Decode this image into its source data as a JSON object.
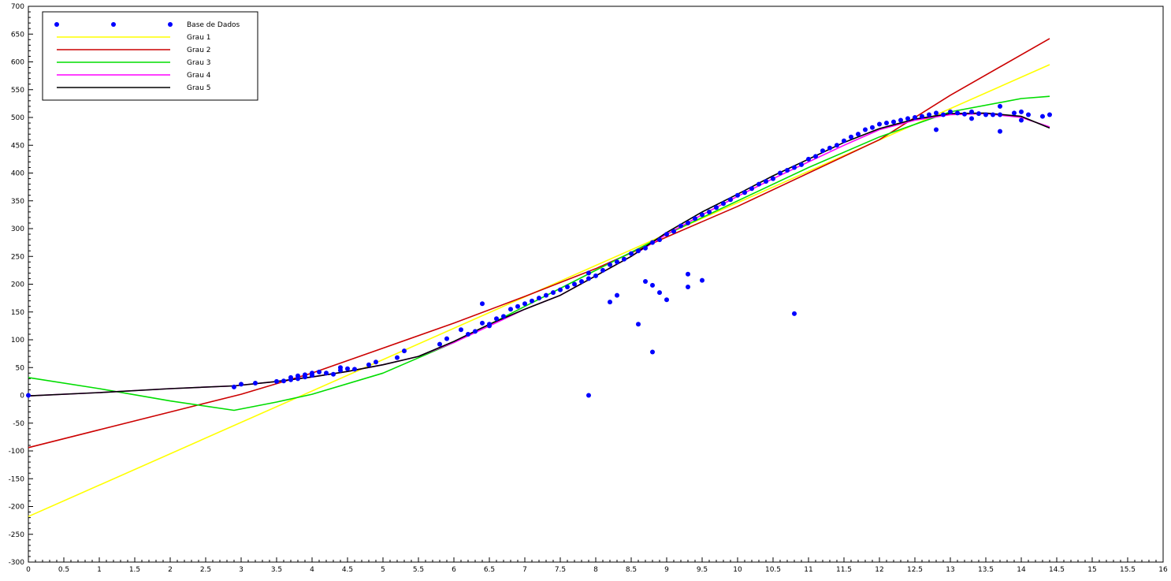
{
  "chart_data": {
    "type": "scatter",
    "xlim": [
      0,
      16
    ],
    "ylim": [
      -300,
      700
    ],
    "x_ticks": [
      0,
      0.5,
      1,
      1.5,
      2,
      2.5,
      3,
      3.5,
      4,
      4.5,
      5,
      5.5,
      6,
      6.5,
      7,
      7.5,
      8,
      8.5,
      9,
      9.5,
      10,
      10.5,
      11,
      11.5,
      12,
      12.5,
      13,
      13.5,
      14,
      14.5,
      15,
      15.5,
      16
    ],
    "x_tick_labels": [
      "0",
      "0.5",
      "1",
      "1.5",
      "2",
      "2.5",
      "3",
      "3.5",
      "4",
      "4.5",
      "5",
      "5.5",
      "6",
      "6.5",
      "7",
      "7.5",
      "8",
      "8.5",
      "9",
      "9.5",
      "10",
      "10.5",
      "11",
      "11.5",
      "12",
      "12.5",
      "13",
      "13.5",
      "14",
      "14.5",
      "15",
      "15.5",
      "16"
    ],
    "y_ticks": [
      -300,
      -250,
      -200,
      -150,
      -100,
      -50,
      0,
      50,
      100,
      150,
      200,
      250,
      300,
      350,
      400,
      450,
      500,
      550,
      600,
      650,
      700
    ],
    "y_tick_labels": [
      "-300",
      "-250",
      "-200",
      "-150",
      "-100",
      "-50",
      "0",
      "50",
      "100",
      "150",
      "200",
      "250",
      "300",
      "350",
      "400",
      "450",
      "500",
      "550",
      "600",
      "650",
      "700"
    ],
    "grid": false,
    "legend_position": "top-left",
    "legend": [
      "Base de Dados",
      "Grau 1",
      "Grau 2",
      "Grau 3",
      "Grau 4",
      "Grau 5"
    ],
    "scatter": {
      "name": "Base de Dados",
      "color": "#0000ff",
      "x": [
        0,
        2.9,
        3.0,
        3.2,
        3.5,
        3.6,
        3.7,
        3.7,
        3.8,
        3.8,
        3.9,
        3.9,
        4.0,
        4.0,
        4.1,
        4.2,
        4.3,
        4.4,
        4.4,
        4.5,
        4.6,
        4.8,
        4.9,
        5.2,
        5.3,
        5.8,
        5.9,
        6.1,
        6.2,
        6.3,
        6.4,
        6.4,
        6.5,
        6.5,
        6.6,
        6.7,
        6.8,
        6.9,
        7.0,
        7.1,
        7.2,
        7.3,
        7.4,
        7.5,
        7.6,
        7.7,
        7.8,
        7.9,
        7.9,
        8.0,
        8.1,
        8.2,
        8.3,
        8.4,
        8.5,
        8.6,
        8.7,
        8.8,
        8.9,
        9.0,
        9.1,
        9.2,
        9.3,
        9.4,
        9.5,
        9.6,
        9.7,
        9.8,
        9.9,
        10.0,
        10.1,
        10.2,
        10.3,
        10.4,
        10.5,
        10.6,
        10.7,
        10.8,
        10.9,
        11.0,
        11.1,
        11.2,
        11.3,
        11.4,
        11.5,
        11.6,
        11.7,
        11.8,
        11.9,
        12.0,
        12.1,
        12.2,
        12.3,
        12.4,
        12.5,
        12.6,
        12.7,
        12.8,
        12.9,
        13.0,
        13.1,
        13.2,
        13.3,
        13.4,
        13.5,
        13.6,
        13.7,
        13.9,
        14.0,
        14.1,
        14.3,
        14.4,
        7.9,
        8.2,
        8.3,
        8.6,
        8.7,
        8.8,
        8.8,
        8.9,
        9.0,
        9.3,
        9.3,
        9.5,
        10.8,
        13.7,
        13.7,
        14.0,
        13.3,
        12.8
      ],
      "y": [
        0,
        15,
        20,
        22,
        25,
        26,
        28,
        32,
        30,
        35,
        33,
        37,
        36,
        40,
        42,
        40,
        38,
        45,
        50,
        48,
        47,
        55,
        60,
        68,
        80,
        92,
        102,
        118,
        110,
        115,
        130,
        165,
        125,
        128,
        138,
        142,
        155,
        160,
        165,
        170,
        175,
        180,
        185,
        190,
        195,
        200,
        205,
        210,
        220,
        215,
        225,
        235,
        240,
        245,
        255,
        260,
        265,
        275,
        280,
        290,
        295,
        305,
        310,
        318,
        325,
        330,
        338,
        345,
        352,
        360,
        365,
        372,
        380,
        385,
        390,
        400,
        405,
        410,
        415,
        425,
        430,
        440,
        445,
        450,
        458,
        465,
        470,
        478,
        482,
        488,
        490,
        492,
        495,
        498,
        500,
        502,
        505,
        508,
        505,
        510,
        508,
        506,
        510,
        507,
        505,
        505,
        505,
        508,
        510,
        505,
        502,
        505,
        0,
        168,
        180,
        128,
        205,
        78,
        198,
        185,
        172,
        195,
        218,
        207,
        147,
        475,
        520,
        495,
        498,
        478
      ]
    },
    "series": [
      {
        "name": "Grau 1",
        "color": "#ffff00",
        "x": [
          0,
          14.4
        ],
        "y": [
          -218,
          595
        ]
      },
      {
        "name": "Grau 2",
        "color": "#cc0000",
        "x": [
          0,
          1,
          2,
          3,
          4,
          5,
          6,
          7,
          8,
          9,
          10,
          11,
          12,
          13,
          14.4
        ],
        "y": [
          -94,
          -62,
          -30,
          2,
          40,
          85,
          130,
          178,
          228,
          285,
          340,
          400,
          460,
          540,
          642
        ]
      },
      {
        "name": "Grau 3",
        "color": "#00dd00",
        "x": [
          0,
          1,
          2,
          2.9,
          3.5,
          4,
          5,
          6,
          7,
          8,
          9,
          10,
          11,
          12,
          13,
          14,
          14.4
        ],
        "y": [
          32,
          12,
          -10,
          -27,
          -12,
          2,
          40,
          95,
          160,
          225,
          290,
          350,
          410,
          465,
          510,
          534,
          538
        ]
      },
      {
        "name": "Grau 4",
        "color": "#ff00ff",
        "x": [
          0,
          1,
          2,
          2.9,
          3.5,
          4,
          4.5,
          5,
          5.5,
          6,
          6.5,
          7,
          7.5,
          8,
          8.5,
          9,
          9.5,
          10,
          10.5,
          11,
          11.5,
          12,
          12.5,
          13,
          13.5,
          14,
          14.4
        ],
        "y": [
          -1,
          5,
          12,
          17,
          25,
          33,
          43,
          55,
          70,
          95,
          125,
          155,
          180,
          215,
          250,
          290,
          325,
          358,
          390,
          420,
          450,
          478,
          495,
          505,
          507,
          500,
          483
        ]
      },
      {
        "name": "Grau 5",
        "color": "#000000",
        "x": [
          0,
          1,
          2,
          2.9,
          3.5,
          4,
          4.5,
          5,
          5.5,
          6,
          6.5,
          7,
          7.5,
          8,
          8.5,
          9,
          9.5,
          10,
          10.5,
          11,
          11.5,
          12,
          12.5,
          13,
          13.5,
          14,
          14.4
        ],
        "y": [
          -1,
          5,
          12,
          17,
          25,
          33,
          43,
          55,
          70,
          97,
          128,
          155,
          180,
          215,
          250,
          293,
          330,
          362,
          395,
          425,
          455,
          480,
          497,
          507,
          508,
          502,
          481
        ]
      }
    ]
  }
}
